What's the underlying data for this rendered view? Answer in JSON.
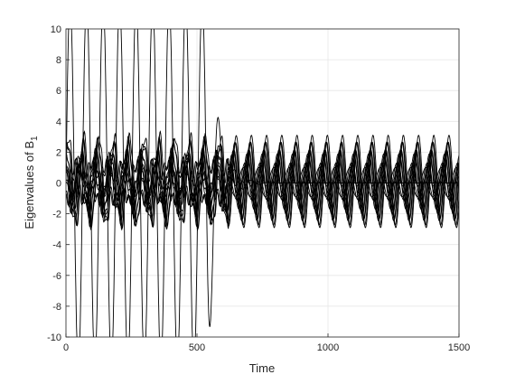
{
  "chart_data": {
    "type": "line",
    "xlabel": "Time",
    "ylabel": "Eigenvalues of B",
    "ylabel_subscript": "1",
    "xlim": [
      0,
      1500
    ],
    "ylim": [
      -10,
      10
    ],
    "xticks": [
      0,
      500,
      1000,
      1500
    ],
    "yticks": [
      -10,
      -8,
      -6,
      -4,
      -2,
      0,
      2,
      4,
      6,
      8,
      10
    ],
    "grid": true,
    "line_color": "#000000",
    "grid_color": "#e6e6e6",
    "series": [
      {
        "values_desc": "large oscillation",
        "amplitude_early": 12.0,
        "amplitude_late": 0.0,
        "period": 63,
        "phase": 0.0,
        "offset": 0.0
      },
      {
        "amplitude_early": 2.8,
        "amplitude_late": 3.0,
        "period": 58,
        "phase": 0.3,
        "offset": 0.2
      },
      {
        "amplitude_early": 2.6,
        "amplitude_late": 2.7,
        "period": 58,
        "phase": 0.6,
        "offset": -0.1
      },
      {
        "amplitude_early": 2.4,
        "amplitude_late": 2.5,
        "period": 58,
        "phase": 0.9,
        "offset": 0.3
      },
      {
        "amplitude_early": 2.2,
        "amplitude_late": 2.3,
        "period": 58,
        "phase": 1.2,
        "offset": -0.3
      },
      {
        "amplitude_early": 2.0,
        "amplitude_late": 2.1,
        "period": 58,
        "phase": 1.5,
        "offset": 0.1
      },
      {
        "amplitude_early": 1.8,
        "amplitude_late": 1.9,
        "period": 58,
        "phase": 1.8,
        "offset": -0.2
      },
      {
        "amplitude_early": 1.5,
        "amplitude_late": 1.7,
        "period": 58,
        "phase": 2.1,
        "offset": 0.4
      },
      {
        "amplitude_early": 1.3,
        "amplitude_late": 1.5,
        "period": 58,
        "phase": 2.4,
        "offset": -0.4
      },
      {
        "amplitude_early": 1.0,
        "amplitude_late": 1.2,
        "period": 58,
        "phase": 2.7,
        "offset": 0.0
      },
      {
        "amplitude_early": 0.8,
        "amplitude_late": 1.0,
        "period": 58,
        "phase": 3.0,
        "offset": 0.6
      },
      {
        "amplitude_early": 0.6,
        "amplitude_late": 0.8,
        "period": 58,
        "phase": 3.3,
        "offset": -0.6
      },
      {
        "amplitude_early": 0.4,
        "amplitude_late": 0.6,
        "period": 58,
        "phase": 3.6,
        "offset": 0.8
      },
      {
        "amplitude_early": 0.3,
        "amplitude_late": 0.5,
        "period": 58,
        "phase": 3.9,
        "offset": -0.8
      }
    ],
    "transition_time": 620
  }
}
